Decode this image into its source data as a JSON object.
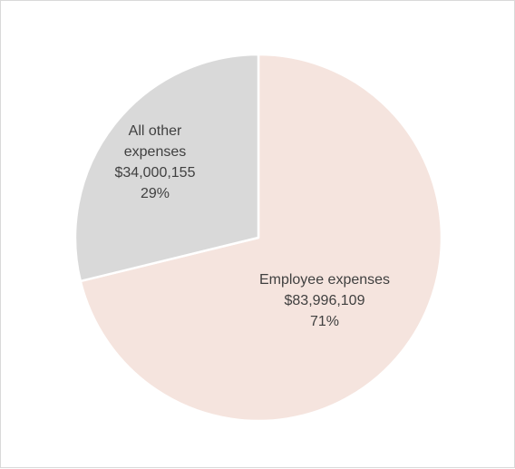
{
  "chart_data": {
    "type": "pie",
    "title": "",
    "categories": [
      "Employee expenses",
      "All other expenses"
    ],
    "values": [
      83996109,
      34000155
    ],
    "value_labels": [
      "$83,996,109",
      "$34,000,155"
    ],
    "percent_labels": [
      "71%",
      "29%"
    ],
    "label_lines": [
      [
        "Employee expenses",
        "$83,996,109",
        "71%"
      ],
      [
        "All other",
        "expenses",
        "$34,000,155",
        "29%"
      ]
    ],
    "colors": [
      "#f5e4de",
      "#d9d9d9"
    ],
    "slice_border_color": "#ffffff",
    "start_angle_deg": 0,
    "direction": "clockwise",
    "legend": "none",
    "grid": false
  }
}
